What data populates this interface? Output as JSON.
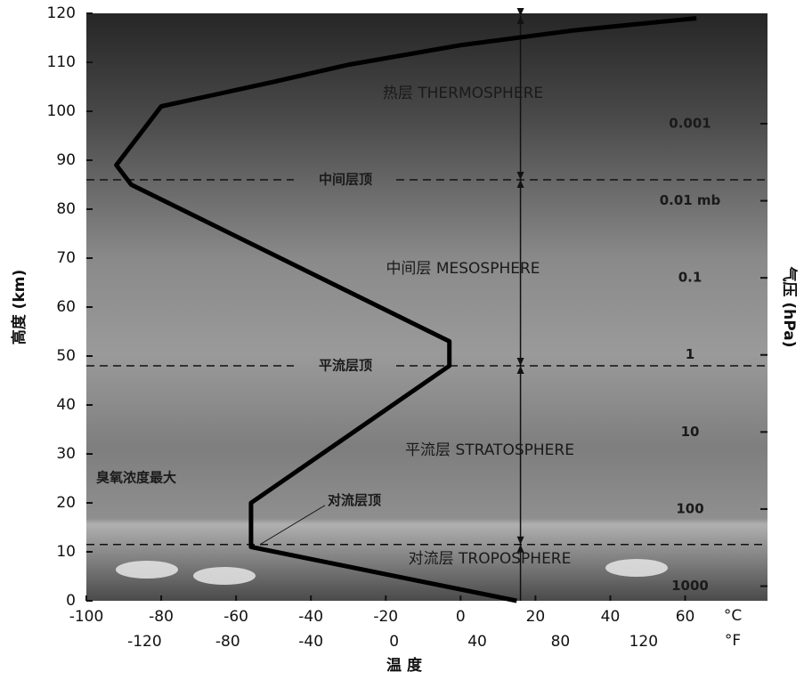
{
  "chart_data": {
    "type": "line",
    "x": [
      15,
      -56,
      -56,
      -3,
      -3,
      -88,
      -92,
      -80,
      -50,
      -30,
      0,
      30,
      63
    ],
    "values": [
      0,
      11,
      20,
      48,
      53,
      85,
      89,
      101,
      106,
      109.5,
      113.5,
      116.5,
      119
    ],
    "color": "#000000",
    "xlim": [
      -100,
      82
    ],
    "xticks": [
      -100,
      -80,
      -60,
      -40,
      -20,
      0,
      20,
      40,
      60
    ],
    "x_unit": "°C",
    "x2lim": [
      -148,
      179.6
    ],
    "x2ticks": [
      -120,
      -80,
      -40,
      0,
      40,
      80,
      120
    ],
    "x2_unit": "°F",
    "xlabel": "温 度",
    "ylim": [
      0,
      120
    ],
    "yticks": [
      0,
      10,
      20,
      30,
      40,
      50,
      60,
      70,
      80,
      90,
      100,
      110,
      120
    ],
    "ylabel": "高度 (km)",
    "y2lim": [
      1550,
      3.7e-05
    ],
    "y2log": true,
    "y2ticks": [
      0.001,
      {
        "value": 0.01,
        "label": "0.01 mb"
      },
      0.1,
      1,
      10,
      100,
      1000
    ],
    "y2label": "气压 (hPa)",
    "layers": [
      "热层 THERMOSPHERE",
      "中间层 MESOSPHERE",
      "平流层 STRATOSPHERE",
      "对流层 TROPOSPHERE"
    ],
    "boundaries": [
      {
        "label": "对流层顶",
        "y": 11.5
      },
      {
        "label": "平流层顶",
        "y": 48
      },
      {
        "label": "中间层顶",
        "y": 86
      }
    ],
    "annotation": "臭氧浓度最大"
  }
}
